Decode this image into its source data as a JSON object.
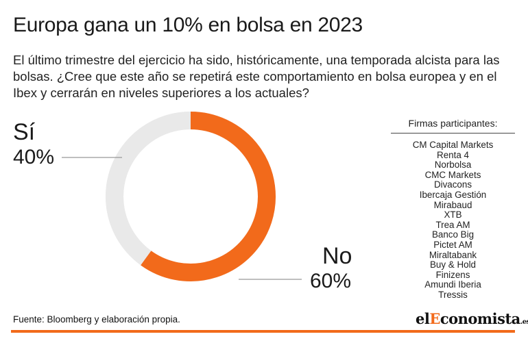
{
  "title": "Europa gana un 10% en bolsa en 2023",
  "question": "El último trimestre del ejercicio ha sido, históricamente, una temporada alcista para las bolsas. ¿Cree que este año se repetirá este comportamiento en bolsa europea y en el Ibex y cerrarán en niveles superiores a los actuales?",
  "chart_data": {
    "type": "pie",
    "variant": "donut",
    "categories": [
      "Sí",
      "No"
    ],
    "values": [
      40,
      60
    ],
    "value_labels": [
      "40%",
      "60%"
    ],
    "colors": [
      "#e9e9e9",
      "#f26a1b"
    ],
    "title": "",
    "legend": "none"
  },
  "firms": {
    "heading": "Firmas participantes:",
    "items": [
      "CM Capital Markets",
      "Renta 4",
      "Norbolsa",
      "CMC Markets",
      "Divacons",
      "Ibercaja Gestión",
      "Mirabaud",
      "XTB",
      "Trea AM",
      "Banco Big",
      "Pictet AM",
      "Miraltabank",
      "Buy & Hold",
      "Finizens",
      "Amundi Iberia",
      "Tressis"
    ]
  },
  "source": "Fuente: Bloomberg y elaboración propia.",
  "logo": {
    "part1": "el",
    "part2": "E",
    "part3": "conomista",
    "tld": ".es"
  },
  "colors": {
    "accent": "#f26a1b",
    "ring_background": "#e9e9e9",
    "leader_line": "#999999"
  }
}
